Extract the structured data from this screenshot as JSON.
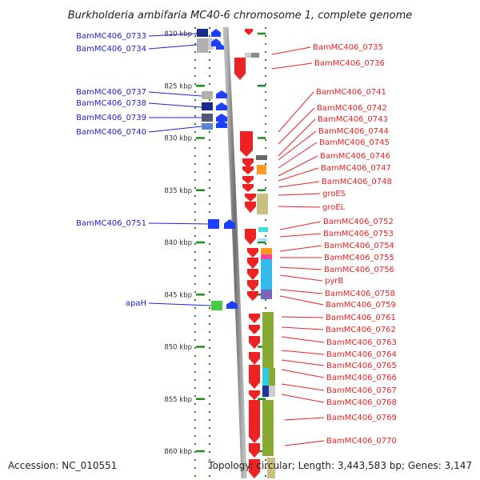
{
  "title": "Burkholderia ambifaria MC40-6 chromosome 1, complete genome",
  "footer": {
    "accession": "Accession: NC_010551",
    "summary": "Topology: circular; Length: 3,443,583 bp; Genes: 3,147"
  },
  "axis": {
    "unit": "kbp",
    "range_kbp": [
      818.4,
      862.3
    ],
    "ticks": [
      {
        "kbp": 820,
        "label": "820 kbp"
      },
      {
        "kbp": 825,
        "label": "825 kbp"
      },
      {
        "kbp": 830,
        "label": "830 kbp"
      },
      {
        "kbp": 835,
        "label": "835 kbp"
      },
      {
        "kbp": 840,
        "label": "840 kbp"
      },
      {
        "kbp": 845,
        "label": "845 kbp"
      },
      {
        "kbp": 850,
        "label": "850 kbp"
      },
      {
        "kbp": 855,
        "label": "855 kbp"
      },
      {
        "kbp": 860,
        "label": "860 kbp"
      }
    ]
  },
  "colors": {
    "reverse_strand": "#2222dd",
    "forward_strand": "#ee2222",
    "axis_green": "#228822",
    "backbone": "#888888"
  },
  "reverse_labels": [
    "BamMC406_0733",
    "BamMC406_0734",
    "BamMC406_0737",
    "BamMC406_0738",
    "BamMC406_0739",
    "BamMC406_0740",
    "BamMC406_0751",
    "apaH"
  ],
  "forward_labels": [
    "BamMC406_0735",
    "BamMC406_0736",
    "BamMC406_0741",
    "BamMC406_0742",
    "BamMC406_0743",
    "BamMC406_0744",
    "BamMC406_0745",
    "BamMC406_0746",
    "BamMC406_0747",
    "BamMC406_0748",
    "groES",
    "groEL",
    "BamMC406_0752",
    "BamMC406_0753",
    "BamMC406_0754",
    "BamMC406_0755",
    "BamMC406_0756",
    "pyrB",
    "BamMC406_0758",
    "BamMC406_0759",
    "BamMC406_0761",
    "BamMC406_0762",
    "BamMC406_0763",
    "BamMC406_0764",
    "BamMC406_0765",
    "BamMC406_0766",
    "BamMC406_0767",
    "BamMC406_0768",
    "BamMC406_0769",
    "BamMC406_0770"
  ]
}
